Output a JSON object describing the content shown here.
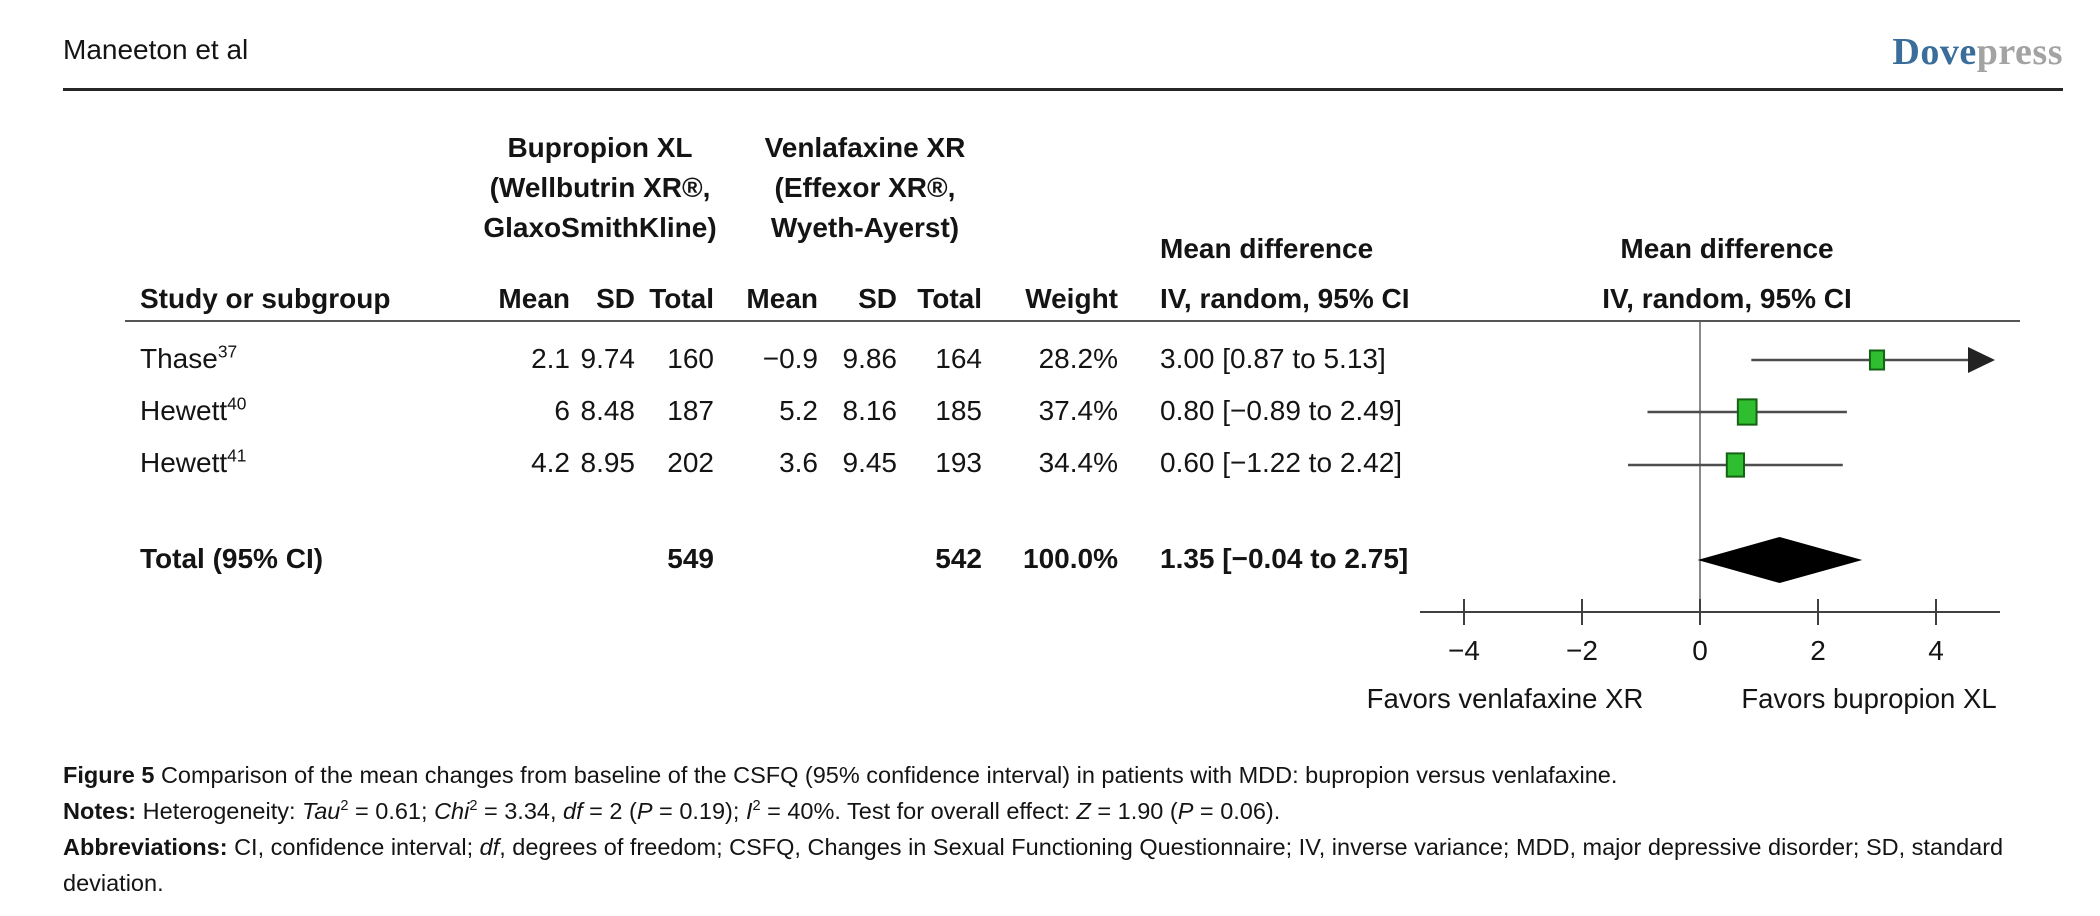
{
  "header": {
    "running_head": "Maneeton et al",
    "logo_part1": "Dove",
    "logo_part2": "press"
  },
  "table": {
    "group1": [
      "Bupropion XL",
      "(Wellbutrin XR®,",
      "GlaxoSmithKline)"
    ],
    "group2": [
      "Venlafaxine XR",
      "(Effexor XR®,",
      "Wyeth-Ayerst)"
    ],
    "col_study": "Study or subgroup",
    "col_mean1": "Mean",
    "col_sd1": "SD",
    "col_total1": "Total",
    "col_mean2": "Mean",
    "col_sd2": "SD",
    "col_total2": "Total",
    "col_weight": "Weight",
    "md_col": {
      "line1": "Mean difference",
      "line2": "IV, random, 95% CI"
    },
    "plot_col": {
      "line1": "Mean difference",
      "line2": "IV, random, 95% CI"
    },
    "rows": [
      {
        "study": "Thase",
        "ref": "37",
        "b_mean": "2.1",
        "b_sd": "9.74",
        "b_total": "160",
        "v_mean": "−0.9",
        "v_sd": "9.86",
        "v_total": "164",
        "weight": "28.2%",
        "md": "3.00 [0.87 to 5.13]"
      },
      {
        "study": "Hewett",
        "ref": "40",
        "b_mean": "6",
        "b_sd": "8.48",
        "b_total": "187",
        "v_mean": "5.2",
        "v_sd": "8.16",
        "v_total": "185",
        "weight": "37.4%",
        "md": "0.80 [−0.89 to 2.49]"
      },
      {
        "study": "Hewett",
        "ref": "41",
        "b_mean": "4.2",
        "b_sd": "8.95",
        "b_total": "202",
        "v_mean": "3.6",
        "v_sd": "9.45",
        "v_total": "193",
        "weight": "34.4%",
        "md": "0.60 [−1.22 to 2.42]"
      }
    ],
    "total": {
      "label": "Total (95% CI)",
      "b_total": "549",
      "v_total": "542",
      "weight": "100.0%",
      "md": "1.35 [−0.04 to 2.75]"
    }
  },
  "chart_data": {
    "type": "scatter",
    "variant": "forest_plot",
    "effect_measure": "Mean difference, IV, random, 95% CI",
    "xlim": [
      -4.75,
      5.1
    ],
    "x_tick_values": [
      -4,
      -2,
      0,
      2,
      4
    ],
    "x_tick_labels": [
      "−4",
      "−2",
      "0",
      "2",
      "4"
    ],
    "zero_line": 0,
    "studies": [
      {
        "label": "Thase 37",
        "estimate": 3.0,
        "ci_low": 0.87,
        "ci_high": 5.13,
        "weight_pct": 28.2,
        "arrow_high": true
      },
      {
        "label": "Hewett 40",
        "estimate": 0.8,
        "ci_low": -0.89,
        "ci_high": 2.49,
        "weight_pct": 37.4,
        "arrow_high": false
      },
      {
        "label": "Hewett 41",
        "estimate": 0.6,
        "ci_low": -1.22,
        "ci_high": 2.42,
        "weight_pct": 34.4,
        "arrow_high": false
      }
    ],
    "total": {
      "label": "Total (95% CI)",
      "estimate": 1.35,
      "ci_low": -0.04,
      "ci_high": 2.75
    },
    "favors_left": "Favors venlafaxine XR",
    "favors_right": "Favors bupropion XL",
    "marker_color": "#2fbe2f",
    "marker_border": "#146314",
    "diamond_color": "#000000",
    "axis_color": "#404040",
    "ci_color": "#4d4d4d",
    "zero_line_color": "#8a8a8a"
  },
  "caption": {
    "lines": [
      [
        {
          "t": "Figure 5 ",
          "b": true
        },
        {
          "t": "Comparison of the mean changes from baseline of the CSFQ (95% confidence interval) in patients with MDD: bupropion versus venlafaxine."
        }
      ],
      [
        {
          "t": "Notes: ",
          "b": true
        },
        {
          "t": "Heterogeneity: "
        },
        {
          "t": "Tau",
          "i": true
        },
        {
          "t": "2",
          "sup": true
        },
        {
          "t": " = 0.61; "
        },
        {
          "t": "Chi",
          "i": true
        },
        {
          "t": "2",
          "sup": true
        },
        {
          "t": " = 3.34, "
        },
        {
          "t": "df",
          "i": true
        },
        {
          "t": " = 2 ("
        },
        {
          "t": "P",
          "i": true
        },
        {
          "t": " = 0.19); "
        },
        {
          "t": "I",
          "i": true
        },
        {
          "t": "2",
          "sup": true
        },
        {
          "t": " = 40%. Test for overall effect: "
        },
        {
          "t": "Z",
          "i": true
        },
        {
          "t": " = 1.90 ("
        },
        {
          "t": "P",
          "i": true
        },
        {
          "t": " = 0.06)."
        }
      ],
      [
        {
          "t": "Abbreviations: ",
          "b": true
        },
        {
          "t": "CI, confidence interval; "
        },
        {
          "t": "df",
          "i": true
        },
        {
          "t": ", degrees of freedom; CSFQ, Changes in Sexual Functioning Questionnaire; IV, inverse variance; MDD, major depressive disorder; SD, standard deviation."
        }
      ]
    ]
  }
}
